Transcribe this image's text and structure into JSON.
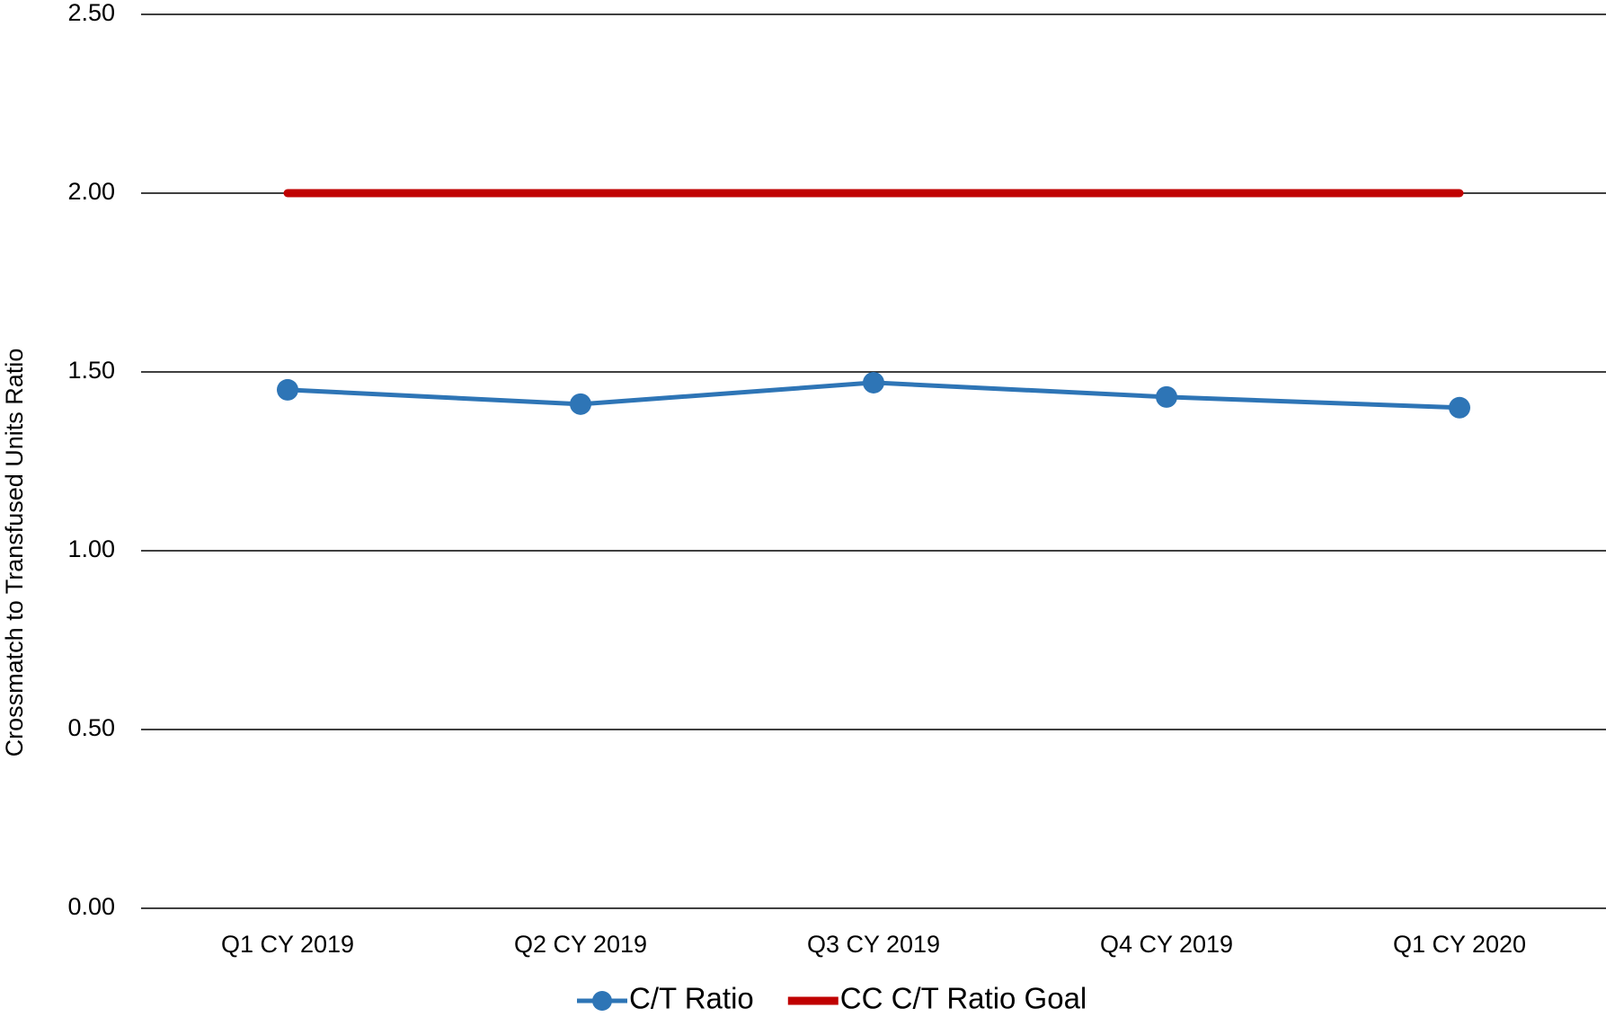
{
  "chart_data": {
    "type": "line",
    "y_label": "Crossmatch to Transfused Units Ratio",
    "categories": [
      "Q1 CY 2019",
      "Q2 CY 2019",
      "Q3 CY 2019",
      "Q4 CY 2019",
      "Q1 CY 2020"
    ],
    "series": [
      {
        "name": "C/T Ratio",
        "color": "#2e75b6",
        "values": [
          1.45,
          1.41,
          1.47,
          1.43,
          1.4
        ]
      },
      {
        "name": "CC C/T Ratio Goal",
        "color": "#c00000",
        "values": [
          2.0,
          2.0,
          2.0,
          2.0,
          2.0
        ]
      }
    ],
    "ylim": [
      0,
      2.5
    ],
    "yticks": [
      {
        "value": 0,
        "label": "0.00"
      },
      {
        "value": 0.5,
        "label": "0.50"
      },
      {
        "value": 1,
        "label": "1.00"
      },
      {
        "value": 1.5,
        "label": "1.50"
      },
      {
        "value": 2,
        "label": "2.00"
      },
      {
        "value": 2.5,
        "label": "2.50"
      }
    ],
    "grid": true
  }
}
